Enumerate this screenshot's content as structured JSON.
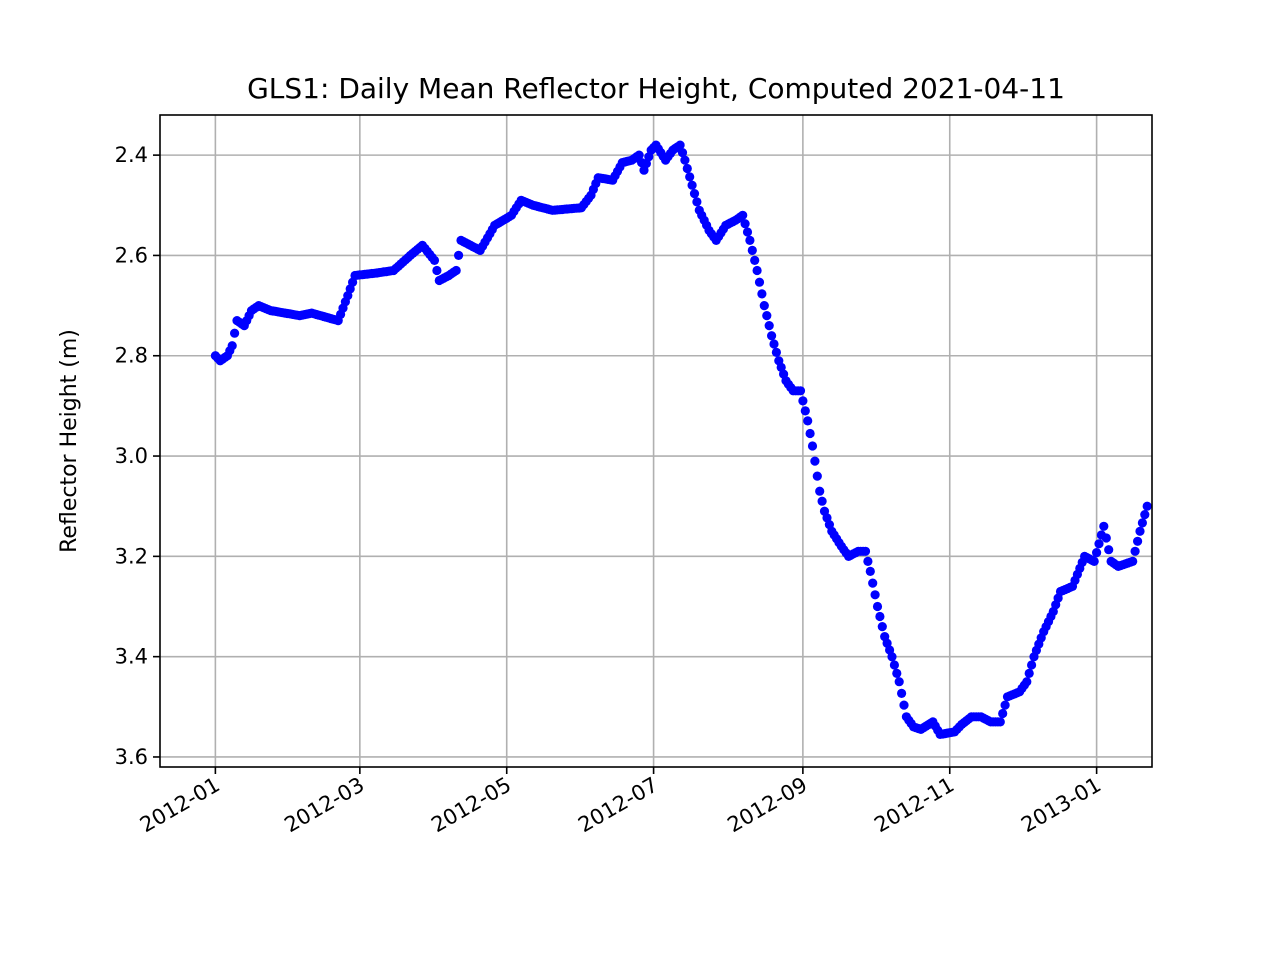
{
  "chart_data": {
    "type": "scatter",
    "title": "GLS1: Daily Mean Reflector Height, Computed 2021-04-11",
    "xlabel": "",
    "ylabel": "Reflector Height (m)",
    "x_type": "date",
    "xlim": [
      "2011-12-09",
      "2013-01-24"
    ],
    "ylim": [
      3.62,
      2.32
    ],
    "y_inverted": true,
    "grid": true,
    "marker_color": "#0000ff",
    "x_ticks": [
      {
        "value": "2012-01-01",
        "label": "2012-01"
      },
      {
        "value": "2012-03-01",
        "label": "2012-03"
      },
      {
        "value": "2012-05-01",
        "label": "2012-05"
      },
      {
        "value": "2012-07-01",
        "label": "2012-07"
      },
      {
        "value": "2012-09-01",
        "label": "2012-09"
      },
      {
        "value": "2012-11-01",
        "label": "2012-11"
      },
      {
        "value": "2013-01-01",
        "label": "2013-01"
      }
    ],
    "y_ticks": [
      {
        "value": 2.4,
        "label": "2.4"
      },
      {
        "value": 2.6,
        "label": "2.6"
      },
      {
        "value": 2.8,
        "label": "2.8"
      },
      {
        "value": 3.0,
        "label": "3.0"
      },
      {
        "value": 3.2,
        "label": "3.2"
      },
      {
        "value": 3.4,
        "label": "3.4"
      },
      {
        "value": 3.6,
        "label": "3.6"
      }
    ],
    "keypoints": [
      [
        "2012-01-01",
        2.8
      ],
      [
        "2012-01-03",
        2.81
      ],
      [
        "2012-01-06",
        2.8
      ],
      [
        "2012-01-08",
        2.78
      ],
      [
        "2012-01-10",
        2.73
      ],
      [
        "2012-01-13",
        2.74
      ],
      [
        "2012-01-16",
        2.71
      ],
      [
        "2012-01-19",
        2.7
      ],
      [
        "2012-01-24",
        2.71
      ],
      [
        "2012-02-05",
        2.72
      ],
      [
        "2012-02-10",
        2.715
      ],
      [
        "2012-02-21",
        2.73
      ],
      [
        "2012-02-25",
        2.68
      ],
      [
        "2012-02-28",
        2.64
      ],
      [
        "2012-03-08",
        2.635
      ],
      [
        "2012-03-15",
        2.63
      ],
      [
        "2012-03-22",
        2.6
      ],
      [
        "2012-03-27",
        2.58
      ],
      [
        "2012-04-01",
        2.61
      ],
      [
        "2012-04-03",
        2.65
      ],
      [
        "2012-04-07",
        2.64
      ],
      [
        "2012-04-10",
        2.63
      ],
      [
        "2012-04-12",
        2.57
      ],
      [
        "2012-04-20",
        2.59
      ],
      [
        "2012-04-26",
        2.54
      ],
      [
        "2012-05-03",
        2.52
      ],
      [
        "2012-05-07",
        2.49
      ],
      [
        "2012-05-12",
        2.5
      ],
      [
        "2012-05-20",
        2.51
      ],
      [
        "2012-06-01",
        2.505
      ],
      [
        "2012-06-05",
        2.48
      ],
      [
        "2012-06-08",
        2.445
      ],
      [
        "2012-06-14",
        2.45
      ],
      [
        "2012-06-18",
        2.415
      ],
      [
        "2012-06-22",
        2.41
      ],
      [
        "2012-06-25",
        2.4
      ],
      [
        "2012-06-27",
        2.43
      ],
      [
        "2012-06-30",
        2.39
      ],
      [
        "2012-07-02",
        2.38
      ],
      [
        "2012-07-06",
        2.41
      ],
      [
        "2012-07-09",
        2.39
      ],
      [
        "2012-07-12",
        2.38
      ],
      [
        "2012-07-14",
        2.41
      ],
      [
        "2012-07-17",
        2.46
      ],
      [
        "2012-07-20",
        2.51
      ],
      [
        "2012-07-24",
        2.55
      ],
      [
        "2012-07-27",
        2.57
      ],
      [
        "2012-07-31",
        2.54
      ],
      [
        "2012-08-04",
        2.53
      ],
      [
        "2012-08-07",
        2.52
      ],
      [
        "2012-08-10",
        2.57
      ],
      [
        "2012-08-13",
        2.63
      ],
      [
        "2012-08-16",
        2.7
      ],
      [
        "2012-08-19",
        2.76
      ],
      [
        "2012-08-22",
        2.81
      ],
      [
        "2012-08-25",
        2.85
      ],
      [
        "2012-08-28",
        2.87
      ],
      [
        "2012-08-31",
        2.87
      ],
      [
        "2012-09-03",
        2.93
      ],
      [
        "2012-09-05",
        2.98
      ],
      [
        "2012-09-08",
        3.07
      ],
      [
        "2012-09-10",
        3.11
      ],
      [
        "2012-09-13",
        3.15
      ],
      [
        "2012-09-17",
        3.18
      ],
      [
        "2012-09-20",
        3.2
      ],
      [
        "2012-09-24",
        3.19
      ],
      [
        "2012-09-27",
        3.19
      ],
      [
        "2012-09-29",
        3.23
      ],
      [
        "2012-10-02",
        3.3
      ],
      [
        "2012-10-05",
        3.36
      ],
      [
        "2012-10-08",
        3.4
      ],
      [
        "2012-10-11",
        3.45
      ],
      [
        "2012-10-14",
        3.52
      ],
      [
        "2012-10-17",
        3.54
      ],
      [
        "2012-10-20",
        3.545
      ],
      [
        "2012-10-25",
        3.53
      ],
      [
        "2012-10-28",
        3.555
      ],
      [
        "2012-11-03",
        3.55
      ],
      [
        "2012-11-06",
        3.535
      ],
      [
        "2012-11-10",
        3.52
      ],
      [
        "2012-11-14",
        3.52
      ],
      [
        "2012-11-18",
        3.53
      ],
      [
        "2012-11-22",
        3.53
      ],
      [
        "2012-11-25",
        3.48
      ],
      [
        "2012-11-30",
        3.47
      ],
      [
        "2012-12-03",
        3.45
      ],
      [
        "2012-12-06",
        3.4
      ],
      [
        "2012-12-10",
        3.35
      ],
      [
        "2012-12-14",
        3.31
      ],
      [
        "2012-12-17",
        3.27
      ],
      [
        "2012-12-22",
        3.26
      ],
      [
        "2012-12-27",
        3.2
      ],
      [
        "2012-12-31",
        3.21
      ],
      [
        "2013-01-04",
        3.14
      ],
      [
        "2013-01-07",
        3.21
      ],
      [
        "2013-01-10",
        3.22
      ],
      [
        "2013-01-16",
        3.21
      ],
      [
        "2013-01-19",
        3.15
      ],
      [
        "2013-01-22",
        3.1
      ]
    ]
  }
}
